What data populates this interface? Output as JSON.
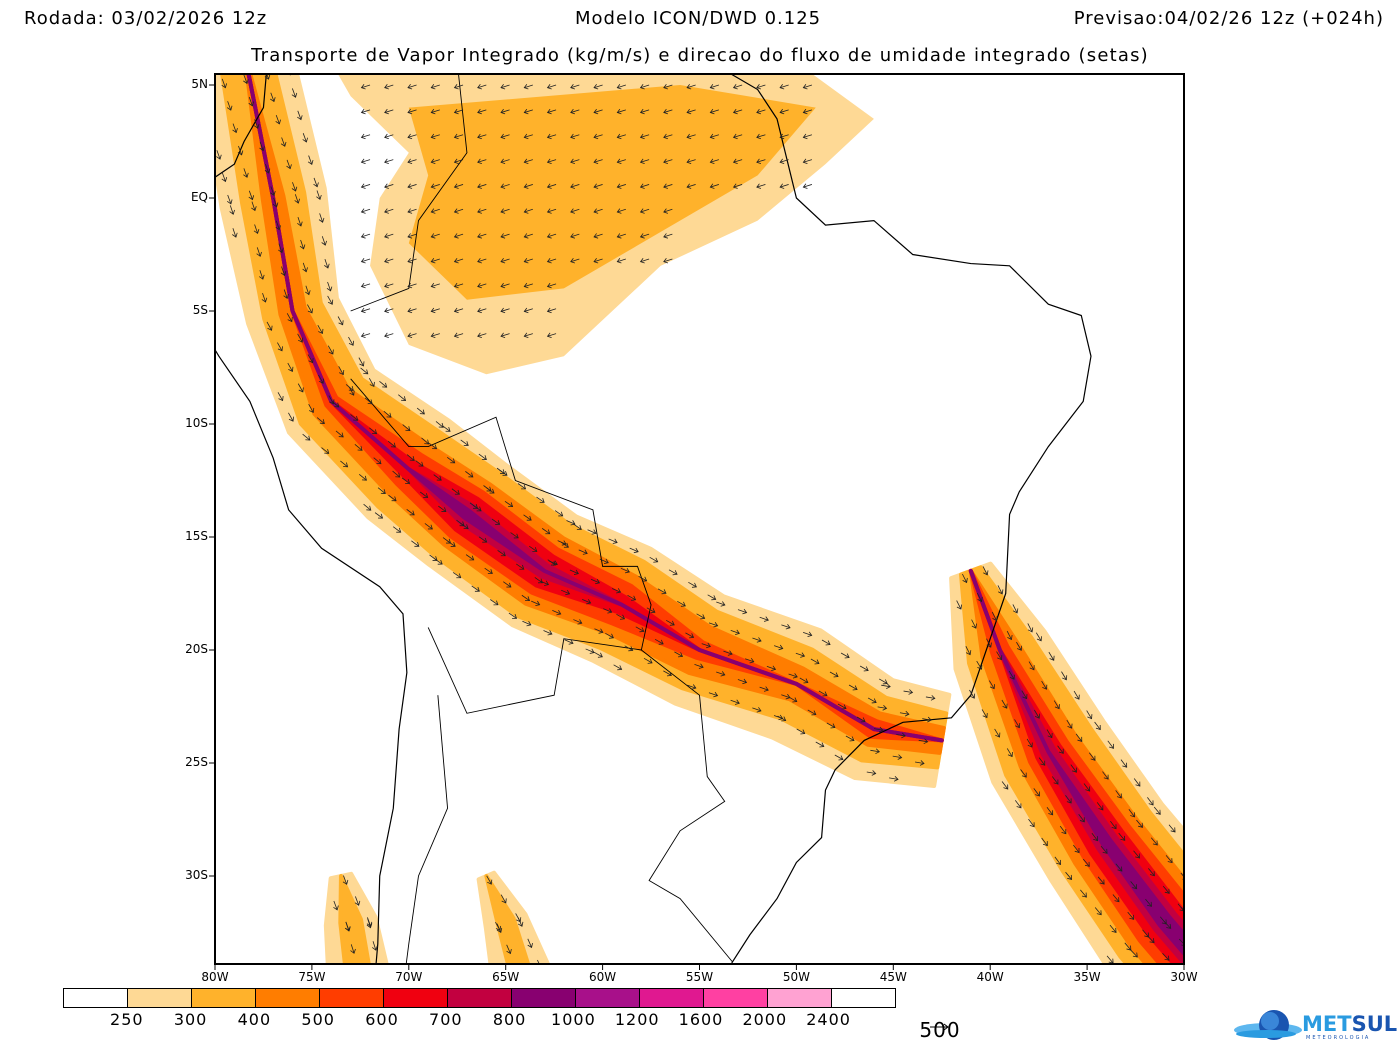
{
  "header": {
    "run": "Rodada: 03/02/2026 12z",
    "model": "Modelo ICON/DWD 0.125",
    "forecast": "Previsao:04/02/26 12z (+024h)",
    "subtitle": "Transporte de Vapor Integrado (kg/m/s) e direcao do fluxo de umidade integrado (setas)"
  },
  "map": {
    "lat_labels": [
      "5N",
      "EQ",
      "5S",
      "10S",
      "15S",
      "20S",
      "25S",
      "30S"
    ],
    "lon_labels": [
      "80W",
      "75W",
      "70W",
      "65W",
      "60W",
      "55W",
      "50W",
      "45W",
      "40W",
      "35W",
      "30W"
    ],
    "extent": {
      "lon": [
        -80,
        -30
      ],
      "lat": [
        -33.9,
        5.5
      ]
    }
  },
  "colorbar": {
    "levels": [
      "250",
      "300",
      "400",
      "500",
      "600",
      "700",
      "800",
      "1000",
      "1200",
      "1600",
      "2000",
      "2400"
    ],
    "colors": [
      "#ffffff",
      "#fed995",
      "#ffb22b",
      "#ff7d00",
      "#ff3d00",
      "#f00010",
      "#c20040",
      "#880070",
      "#a8108a",
      "#e01890",
      "#ff40a2",
      "#ffa2d2",
      "#ffffff"
    ]
  },
  "reference_vector": {
    "value": "500",
    "icon": "arrow-right-icon"
  },
  "logo": {
    "name": "METSUL",
    "name_a": "MET",
    "name_b": "SUL",
    "tagline": "METEOROLOGIA"
  }
}
